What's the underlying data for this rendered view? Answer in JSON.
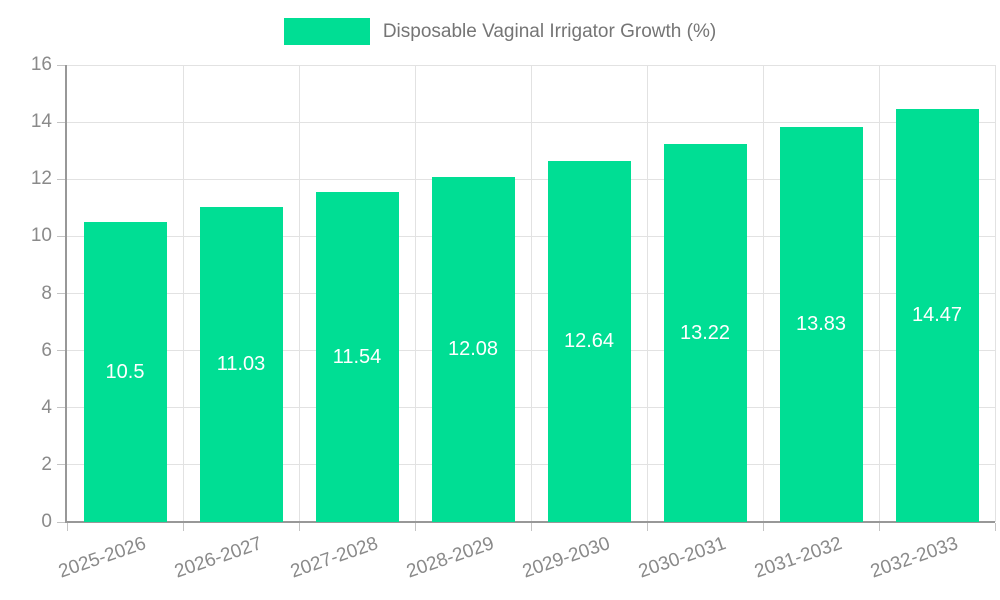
{
  "chart_data": {
    "type": "bar",
    "legend": "Disposable Vaginal Irrigator Growth (%)",
    "categories": [
      "2025-2026",
      "2026-2027",
      "2027-2028",
      "2028-2029",
      "2029-2030",
      "2030-2031",
      "2031-2032",
      "2032-2033"
    ],
    "values": [
      10.5,
      11.03,
      11.54,
      12.08,
      12.64,
      13.22,
      13.83,
      14.47
    ],
    "value_labels": [
      "10.5",
      "11.03",
      "11.54",
      "12.08",
      "12.64",
      "13.22",
      "13.83",
      "14.47"
    ],
    "title": "",
    "xlabel": "",
    "ylabel": "",
    "ylim": [
      0,
      16
    ],
    "ytick_step": 2,
    "ytick_labels": [
      "0",
      "2",
      "4",
      "6",
      "8",
      "10",
      "12",
      "14",
      "16"
    ],
    "grid": true,
    "legend_position": "top-center",
    "colors": {
      "bar": "#00de94",
      "grid": "#e2e2e2",
      "axis": "#989898",
      "tick": "#c4c4c4",
      "axis_label": "#8a8a8a",
      "legend_text": "#757575",
      "value_label": "#ffffff",
      "background": "#ffffff"
    }
  }
}
